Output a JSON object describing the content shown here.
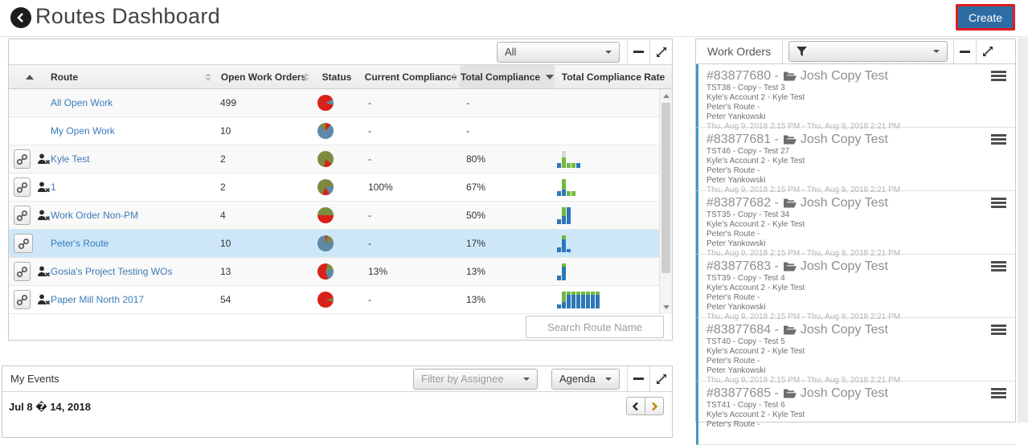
{
  "header": {
    "title": "Routes Dashboard",
    "create_label": "Create"
  },
  "routes_panel": {
    "filter_value": "All",
    "search_placeholder": "Search Route Name",
    "columns": {
      "route": "Route",
      "open": "Open Work Orders",
      "status": "Status",
      "current": "Current Compliance",
      "total": "Total Compliance",
      "rate": "Total Compliance Rate"
    },
    "rows": [
      {
        "route": "All Open Work",
        "open": "499",
        "current": "-",
        "total": "-",
        "link": false,
        "remove": false,
        "highlight": false,
        "pie": [
          {
            "c": "#d8211a",
            "d": 65
          },
          {
            "c": "#5d89a6",
            "d": 40
          },
          {
            "c": "#d8211a",
            "d": 255
          }
        ],
        "bars": []
      },
      {
        "route": "My Open Work",
        "open": "10",
        "current": "-",
        "total": "-",
        "link": false,
        "remove": false,
        "highlight": false,
        "pie": [
          {
            "c": "#d8211a",
            "d": 40
          },
          {
            "c": "#5d89a6",
            "d": 275
          },
          {
            "c": "#7d8b41",
            "d": 45
          }
        ],
        "bars": []
      },
      {
        "route": "Kyle Test",
        "open": "2",
        "current": "-",
        "total": "80%",
        "link": true,
        "remove": true,
        "highlight": false,
        "pie": [
          {
            "c": "#7d8b41",
            "d": 130
          },
          {
            "c": "#d8211a",
            "d": 60
          },
          {
            "c": "#7d8b41",
            "d": 170
          }
        ],
        "bars": [
          [
            [
              "#2d77b8",
              6
            ]
          ],
          [
            [
              "#72b840",
              13
            ],
            [
              "#d8d8d8",
              8
            ]
          ],
          [
            [
              "#72b840",
              6
            ]
          ],
          [
            [
              "#72b840",
              6
            ]
          ],
          [
            [
              "#2d77b8",
              6
            ]
          ]
        ]
      },
      {
        "route": "1",
        "open": "2",
        "current": "100%",
        "total": "67%",
        "link": true,
        "remove": true,
        "highlight": false,
        "pie": [
          {
            "c": "#7d8b41",
            "d": 85
          },
          {
            "c": "#5d89a6",
            "d": 65
          },
          {
            "c": "#d8211a",
            "d": 55
          },
          {
            "c": "#7d8b41",
            "d": 155
          }
        ],
        "bars": [
          [
            [
              "#2d77b8",
              6
            ]
          ],
          [
            [
              "#2d77b8",
              8
            ],
            [
              "#72b840",
              13
            ]
          ],
          [
            [
              "#72b840",
              6
            ]
          ],
          [
            [
              "#72b840",
              6
            ]
          ]
        ]
      },
      {
        "route": "Work Order Non-PM",
        "open": "4",
        "current": "-",
        "total": "50%",
        "link": true,
        "remove": true,
        "highlight": false,
        "pie": [
          {
            "c": "#7d8b41",
            "d": 90
          },
          {
            "c": "#d8211a",
            "d": 180
          },
          {
            "c": "#7d8b41",
            "d": 90
          }
        ],
        "bars": [
          [
            [
              "#2d77b8",
              6
            ]
          ],
          [
            [
              "#2d77b8",
              10
            ],
            [
              "#72b840",
              11
            ]
          ],
          [
            [
              "#2d77b8",
              21
            ]
          ]
        ]
      },
      {
        "route": "Peter's Route",
        "open": "10",
        "current": "-",
        "total": "17%",
        "link": true,
        "remove": false,
        "highlight": true,
        "pie": [
          {
            "c": "#d8211a",
            "d": 15
          },
          {
            "c": "#7d8b41",
            "d": 55
          },
          {
            "c": "#5d89a6",
            "d": 290
          }
        ],
        "bars": [
          [
            [
              "#2d77b8",
              6
            ]
          ],
          [
            [
              "#2d77b8",
              16
            ],
            [
              "#72b840",
              5
            ]
          ],
          [
            [
              "#2d77b8",
              4
            ]
          ]
        ]
      },
      {
        "route": "Gosia's Project Testing WOs",
        "open": "13",
        "current": "13%",
        "total": "13%",
        "link": true,
        "remove": true,
        "highlight": false,
        "pie": [
          {
            "c": "#d8211a",
            "d": 15
          },
          {
            "c": "#7d8b41",
            "d": 55
          },
          {
            "c": "#5d89a6",
            "d": 90
          },
          {
            "c": "#d8211a",
            "d": 200
          }
        ],
        "bars": [
          [
            [
              "#2d77b8",
              6
            ]
          ],
          [
            [
              "#2d77b8",
              17
            ],
            [
              "#72b840",
              4
            ]
          ]
        ]
      },
      {
        "route": "Paper Mill North 2017",
        "open": "54",
        "current": "-",
        "total": "13%",
        "link": true,
        "remove": true,
        "highlight": false,
        "pie": [
          {
            "c": "#d8211a",
            "d": 80
          },
          {
            "c": "#7d8b41",
            "d": 25
          },
          {
            "c": "#d8211a",
            "d": 255
          }
        ],
        "bars": [
          [
            [
              "#2d77b8",
              5
            ]
          ],
          [
            [
              "#2d77b8",
              8
            ],
            [
              "#72b840",
              13
            ]
          ],
          [
            [
              "#2d77b8",
              17
            ],
            [
              "#72b840",
              4
            ]
          ],
          [
            [
              "#2d77b8",
              17
            ],
            [
              "#72b840",
              4
            ]
          ],
          [
            [
              "#2d77b8",
              17
            ],
            [
              "#72b840",
              4
            ]
          ],
          [
            [
              "#2d77b8",
              17
            ],
            [
              "#72b840",
              4
            ]
          ],
          [
            [
              "#2d77b8",
              17
            ],
            [
              "#72b840",
              4
            ]
          ],
          [
            [
              "#2d77b8",
              17
            ],
            [
              "#72b840",
              4
            ]
          ],
          [
            [
              "#2d77b8",
              17
            ],
            [
              "#72b840",
              4
            ]
          ]
        ]
      }
    ]
  },
  "events_panel": {
    "title": "My Events",
    "assignee_filter": "Filter by Assignee",
    "view_mode": "Agenda",
    "date_range": "Jul 8 � 14, 2018"
  },
  "work_orders_panel": {
    "title": "Work Orders",
    "items": [
      {
        "id": "#83877680",
        "name": "Josh Copy Test",
        "lines": [
          "TST38 - Copy - Test 3",
          "Kyle's Account 2 - Kyle Test",
          "Peter's Route -",
          "Peter Yankowski"
        ],
        "dates": "Thu, Aug 9, 2018 2:15 PM - Thu, Aug 9, 2018 2:21 PM"
      },
      {
        "id": "#83877681",
        "name": "Josh Copy Test",
        "lines": [
          "TST46 - Copy - Test 27",
          "Kyle's Account 2 - Kyle Test",
          "Peter's Route -",
          "Peter Yankowski"
        ],
        "dates": "Thu, Aug 9, 2018 2:15 PM - Thu, Aug 9, 2018 2:21 PM"
      },
      {
        "id": "#83877682",
        "name": "Josh Copy Test",
        "lines": [
          "TST35 - Copy - Test 34",
          "Kyle's Account 2 - Kyle Test",
          "Peter's Route -",
          "Peter Yankowski"
        ],
        "dates": "Thu, Aug 9, 2018 2:15 PM - Thu, Aug 9, 2018 2:21 PM"
      },
      {
        "id": "#83877683",
        "name": "Josh Copy Test",
        "lines": [
          "TST39 - Copy - Test 4",
          "Kyle's Account 2 - Kyle Test",
          "Peter's Route -",
          "Peter Yankowski"
        ],
        "dates": "Thu, Aug 9, 2018 2:15 PM - Thu, Aug 9, 2018 2:21 PM"
      },
      {
        "id": "#83877684",
        "name": "Josh Copy Test",
        "lines": [
          "TST40 - Copy - Test 5",
          "Kyle's Account 2 - Kyle Test",
          "Peter's Route -",
          "Peter Yankowski"
        ],
        "dates": "Thu, Aug 9, 2018 2:15 PM - Thu, Aug 9, 2018 2:21 PM"
      },
      {
        "id": "#83877685",
        "name": "Josh Copy Test",
        "lines": [
          "TST41 - Copy - Test 6",
          "Kyle's Account 2 - Kyle Test",
          "Peter's Route -"
        ],
        "dates": ""
      }
    ]
  }
}
